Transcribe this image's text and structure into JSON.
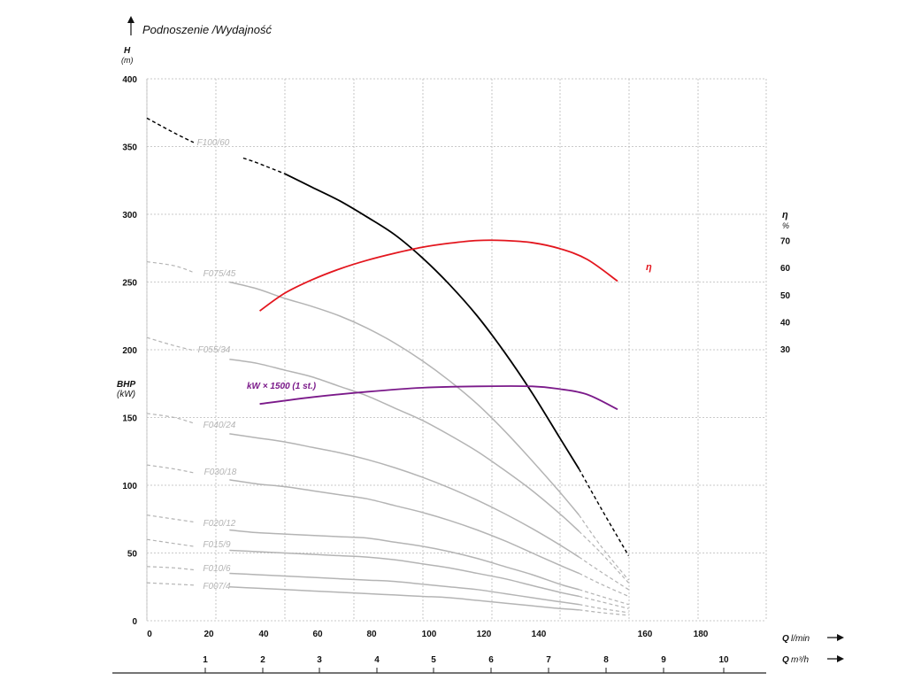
{
  "header": {
    "title": "Podnoszenie /Wydajność",
    "h_label": "H",
    "h_unit": "(m)",
    "eta_label": "η",
    "eta_unit": "%",
    "bhp_label": "BHP",
    "bhp_unit": "(kW)",
    "q_lmin_label": "Q",
    "q_lmin_unit": "l/min",
    "q_m3h_label": "Q",
    "q_m3h_unit": "m³/h"
  },
  "chart_data": {
    "type": "line",
    "xlim": [
      0,
      225
    ],
    "ylim": [
      0,
      400
    ],
    "grid": true,
    "y_ticks": [
      0,
      50,
      100,
      150,
      200,
      250,
      300,
      350,
      400
    ],
    "eta_ticks": [
      30,
      40,
      50,
      60,
      70
    ],
    "x_ticks": [
      0,
      20,
      40,
      60,
      80,
      100,
      120,
      140,
      160,
      180
    ],
    "m3h_ticks": [
      1,
      2,
      3,
      4,
      5,
      6,
      7,
      8,
      9,
      10
    ],
    "head_curves": [
      {
        "name": "F100/60",
        "color": "#000000",
        "label_color": "#111111",
        "points": [
          [
            0,
            371
          ],
          [
            10,
            360
          ],
          [
            20,
            350
          ],
          [
            30,
            345
          ],
          [
            40,
            338
          ],
          [
            50,
            330
          ],
          [
            60,
            320
          ],
          [
            70,
            310
          ],
          [
            80,
            298
          ],
          [
            90,
            285
          ],
          [
            100,
            268
          ],
          [
            110,
            248
          ],
          [
            120,
            225
          ],
          [
            130,
            198
          ],
          [
            140,
            168
          ],
          [
            150,
            135
          ],
          [
            157,
            112
          ],
          [
            165,
            83
          ],
          [
            173,
            55
          ],
          [
            175,
            48
          ]
        ],
        "solid_range": [
          50,
          157
        ]
      },
      {
        "name": "F075/45",
        "color": "#b4b4b4",
        "label_color": "#b4b4b4",
        "points": [
          [
            0,
            265
          ],
          [
            10,
            262
          ],
          [
            20,
            255
          ],
          [
            30,
            250
          ],
          [
            40,
            245
          ],
          [
            50,
            238
          ],
          [
            60,
            232
          ],
          [
            70,
            225
          ],
          [
            80,
            216
          ],
          [
            90,
            205
          ],
          [
            100,
            192
          ],
          [
            110,
            177
          ],
          [
            120,
            160
          ],
          [
            130,
            140
          ],
          [
            140,
            118
          ],
          [
            150,
            95
          ],
          [
            157,
            78
          ],
          [
            165,
            55
          ],
          [
            175,
            30
          ]
        ],
        "solid_range": [
          30,
          157
        ]
      },
      {
        "name": "F055/34",
        "color": "#b4b4b4",
        "label_color": "#b4b4b4",
        "points": [
          [
            0,
            209
          ],
          [
            10,
            203
          ],
          [
            20,
            198
          ],
          [
            30,
            193
          ],
          [
            40,
            190
          ],
          [
            50,
            185
          ],
          [
            60,
            180
          ],
          [
            70,
            173
          ],
          [
            80,
            166
          ],
          [
            90,
            157
          ],
          [
            100,
            148
          ],
          [
            110,
            137
          ],
          [
            120,
            125
          ],
          [
            130,
            111
          ],
          [
            140,
            96
          ],
          [
            150,
            79
          ],
          [
            157,
            66
          ],
          [
            165,
            50
          ],
          [
            175,
            28
          ]
        ],
        "solid_range": [
          30,
          157
        ]
      },
      {
        "name": "F040/24",
        "color": "#b4b4b4",
        "label_color": "#b4b4b4",
        "points": [
          [
            0,
            153
          ],
          [
            10,
            150
          ],
          [
            20,
            144
          ],
          [
            30,
            138
          ],
          [
            40,
            135
          ],
          [
            50,
            132
          ],
          [
            60,
            128
          ],
          [
            70,
            124
          ],
          [
            80,
            119
          ],
          [
            90,
            113
          ],
          [
            100,
            106
          ],
          [
            110,
            98
          ],
          [
            120,
            89
          ],
          [
            130,
            79
          ],
          [
            140,
            68
          ],
          [
            150,
            56
          ],
          [
            157,
            47
          ],
          [
            165,
            36
          ],
          [
            175,
            23
          ]
        ],
        "solid_range": [
          30,
          157
        ]
      },
      {
        "name": "F030/18",
        "color": "#b4b4b4",
        "label_color": "#b4b4b4",
        "points": [
          [
            0,
            115
          ],
          [
            10,
            112
          ],
          [
            20,
            108
          ],
          [
            30,
            104
          ],
          [
            40,
            101
          ],
          [
            50,
            99
          ],
          [
            60,
            96
          ],
          [
            70,
            93
          ],
          [
            80,
            90
          ],
          [
            90,
            85
          ],
          [
            100,
            80
          ],
          [
            110,
            74
          ],
          [
            120,
            67
          ],
          [
            130,
            59
          ],
          [
            140,
            50
          ],
          [
            150,
            41
          ],
          [
            157,
            35
          ],
          [
            165,
            27
          ],
          [
            175,
            18
          ]
        ],
        "solid_range": [
          30,
          157
        ]
      },
      {
        "name": "F020/12",
        "color": "#b4b4b4",
        "label_color": "#b4b4b4",
        "points": [
          [
            0,
            78
          ],
          [
            10,
            75
          ],
          [
            20,
            72
          ],
          [
            30,
            67
          ],
          [
            40,
            65
          ],
          [
            50,
            64
          ],
          [
            60,
            63
          ],
          [
            70,
            62
          ],
          [
            80,
            61
          ],
          [
            90,
            58
          ],
          [
            100,
            55
          ],
          [
            110,
            51
          ],
          [
            120,
            46
          ],
          [
            130,
            40
          ],
          [
            140,
            34
          ],
          [
            150,
            27
          ],
          [
            157,
            23
          ],
          [
            165,
            18
          ],
          [
            175,
            12
          ]
        ],
        "solid_range": [
          30,
          157
        ]
      },
      {
        "name": "F015/9",
        "color": "#b4b4b4",
        "label_color": "#b4b4b4",
        "points": [
          [
            0,
            60
          ],
          [
            10,
            57
          ],
          [
            20,
            54
          ],
          [
            30,
            52
          ],
          [
            40,
            51
          ],
          [
            50,
            50
          ],
          [
            60,
            49
          ],
          [
            70,
            48
          ],
          [
            80,
            47
          ],
          [
            90,
            45
          ],
          [
            100,
            42
          ],
          [
            110,
            39
          ],
          [
            120,
            35
          ],
          [
            130,
            31
          ],
          [
            140,
            26
          ],
          [
            150,
            21
          ],
          [
            157,
            18
          ],
          [
            165,
            14
          ],
          [
            175,
            9
          ]
        ],
        "solid_range": [
          30,
          157
        ]
      },
      {
        "name": "F010/6",
        "color": "#b4b4b4",
        "label_color": "#b4b4b4",
        "points": [
          [
            0,
            40
          ],
          [
            10,
            39
          ],
          [
            20,
            37
          ],
          [
            30,
            35
          ],
          [
            40,
            34
          ],
          [
            50,
            33
          ],
          [
            60,
            32
          ],
          [
            70,
            31
          ],
          [
            80,
            30
          ],
          [
            90,
            29
          ],
          [
            100,
            27
          ],
          [
            110,
            25
          ],
          [
            120,
            23
          ],
          [
            130,
            20
          ],
          [
            140,
            17
          ],
          [
            150,
            14
          ],
          [
            157,
            12
          ],
          [
            165,
            9
          ],
          [
            175,
            6
          ]
        ],
        "solid_range": [
          30,
          157
        ]
      },
      {
        "name": "F007/4",
        "color": "#b4b4b4",
        "label_color": "#b4b4b4",
        "points": [
          [
            0,
            28
          ],
          [
            10,
            27
          ],
          [
            20,
            26
          ],
          [
            30,
            25
          ],
          [
            40,
            24
          ],
          [
            50,
            23
          ],
          [
            60,
            22
          ],
          [
            70,
            21
          ],
          [
            80,
            20
          ],
          [
            90,
            19
          ],
          [
            100,
            18
          ],
          [
            110,
            17
          ],
          [
            120,
            15
          ],
          [
            130,
            13
          ],
          [
            140,
            11
          ],
          [
            150,
            9
          ],
          [
            157,
            8
          ],
          [
            165,
            6
          ],
          [
            175,
            4
          ]
        ],
        "solid_range": [
          30,
          157
        ]
      }
    ],
    "efficiency": {
      "name": "η",
      "color": "#e3161e",
      "points": [
        [
          41,
          44
        ],
        [
          50,
          50.5
        ],
        [
          60,
          55.5
        ],
        [
          70,
          59.5
        ],
        [
          80,
          62.7
        ],
        [
          90,
          65.3
        ],
        [
          100,
          67.5
        ],
        [
          110,
          69
        ],
        [
          120,
          70
        ],
        [
          130,
          70
        ],
        [
          140,
          69.2
        ],
        [
          150,
          67
        ],
        [
          160,
          63
        ],
        [
          171,
          55
        ]
      ]
    },
    "power": {
      "name": "kW × 1500 (1 st.)",
      "color": "#7b1a8a",
      "points": [
        [
          41,
          160
        ],
        [
          60,
          165
        ],
        [
          80,
          169
        ],
        [
          100,
          172
        ],
        [
          120,
          173
        ],
        [
          140,
          173
        ],
        [
          150,
          171
        ],
        [
          160,
          167
        ],
        [
          171,
          156
        ]
      ]
    }
  }
}
